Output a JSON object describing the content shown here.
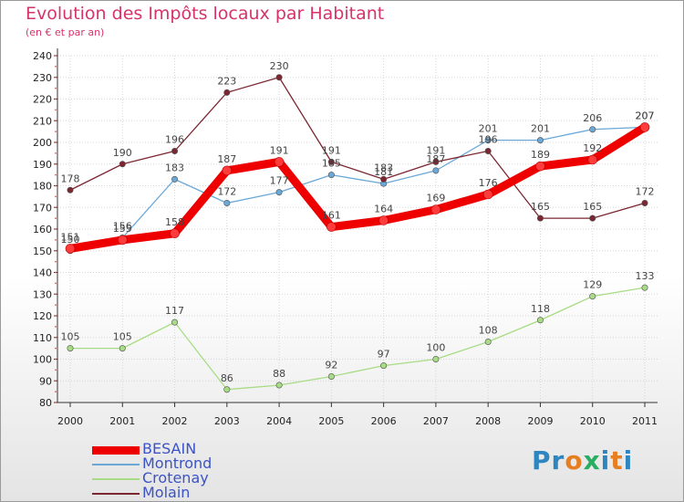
{
  "header": {
    "title": "Evolution des Impôts locaux par Habitant",
    "subtitle": "(en € et par an)"
  },
  "logo": {
    "letters": [
      {
        "char": "P",
        "color": "#2e86c1"
      },
      {
        "char": "r",
        "color": "#2e86c1"
      },
      {
        "char": "o",
        "color": "#e67e22"
      },
      {
        "char": "x",
        "color": "#27ae60"
      },
      {
        "char": "i",
        "color": "#2e86c1"
      },
      {
        "char": "t",
        "color": "#e67e22"
      },
      {
        "char": "i",
        "color": "#2e86c1"
      }
    ]
  },
  "chart_data": {
    "type": "line",
    "title": "Evolution des Impôts locaux par Habitant",
    "subtitle": "(en € et par an)",
    "x": [
      "2000",
      "2001",
      "2002",
      "2003",
      "2004",
      "2005",
      "2006",
      "2007",
      "2008",
      "2009",
      "2010",
      "2011"
    ],
    "ylim": [
      80,
      240
    ],
    "yticks": [
      80,
      90,
      100,
      110,
      120,
      130,
      140,
      150,
      160,
      170,
      180,
      190,
      200,
      210,
      220,
      230,
      240
    ],
    "grid": true,
    "legend": "bottom-left",
    "series": [
      {
        "name": "BESAIN",
        "color": "#ee0000",
        "emphasis": true,
        "values": [
          151,
          155,
          158,
          187,
          191,
          161,
          164,
          169,
          176,
          189,
          192,
          207
        ]
      },
      {
        "name": "Montrond",
        "color": "#6aa8d8",
        "emphasis": false,
        "values": [
          150,
          156,
          183,
          172,
          177,
          185,
          181,
          187,
          201,
          201,
          206,
          207
        ]
      },
      {
        "name": "Crotenay",
        "color": "#a8dc84",
        "emphasis": false,
        "values": [
          105,
          105,
          117,
          86,
          88,
          92,
          97,
          100,
          108,
          118,
          129,
          133
        ]
      },
      {
        "name": "Molain",
        "color": "#7b2630",
        "emphasis": false,
        "values": [
          178,
          190,
          196,
          223,
          230,
          191,
          183,
          191,
          196,
          165,
          165,
          172
        ]
      }
    ]
  }
}
